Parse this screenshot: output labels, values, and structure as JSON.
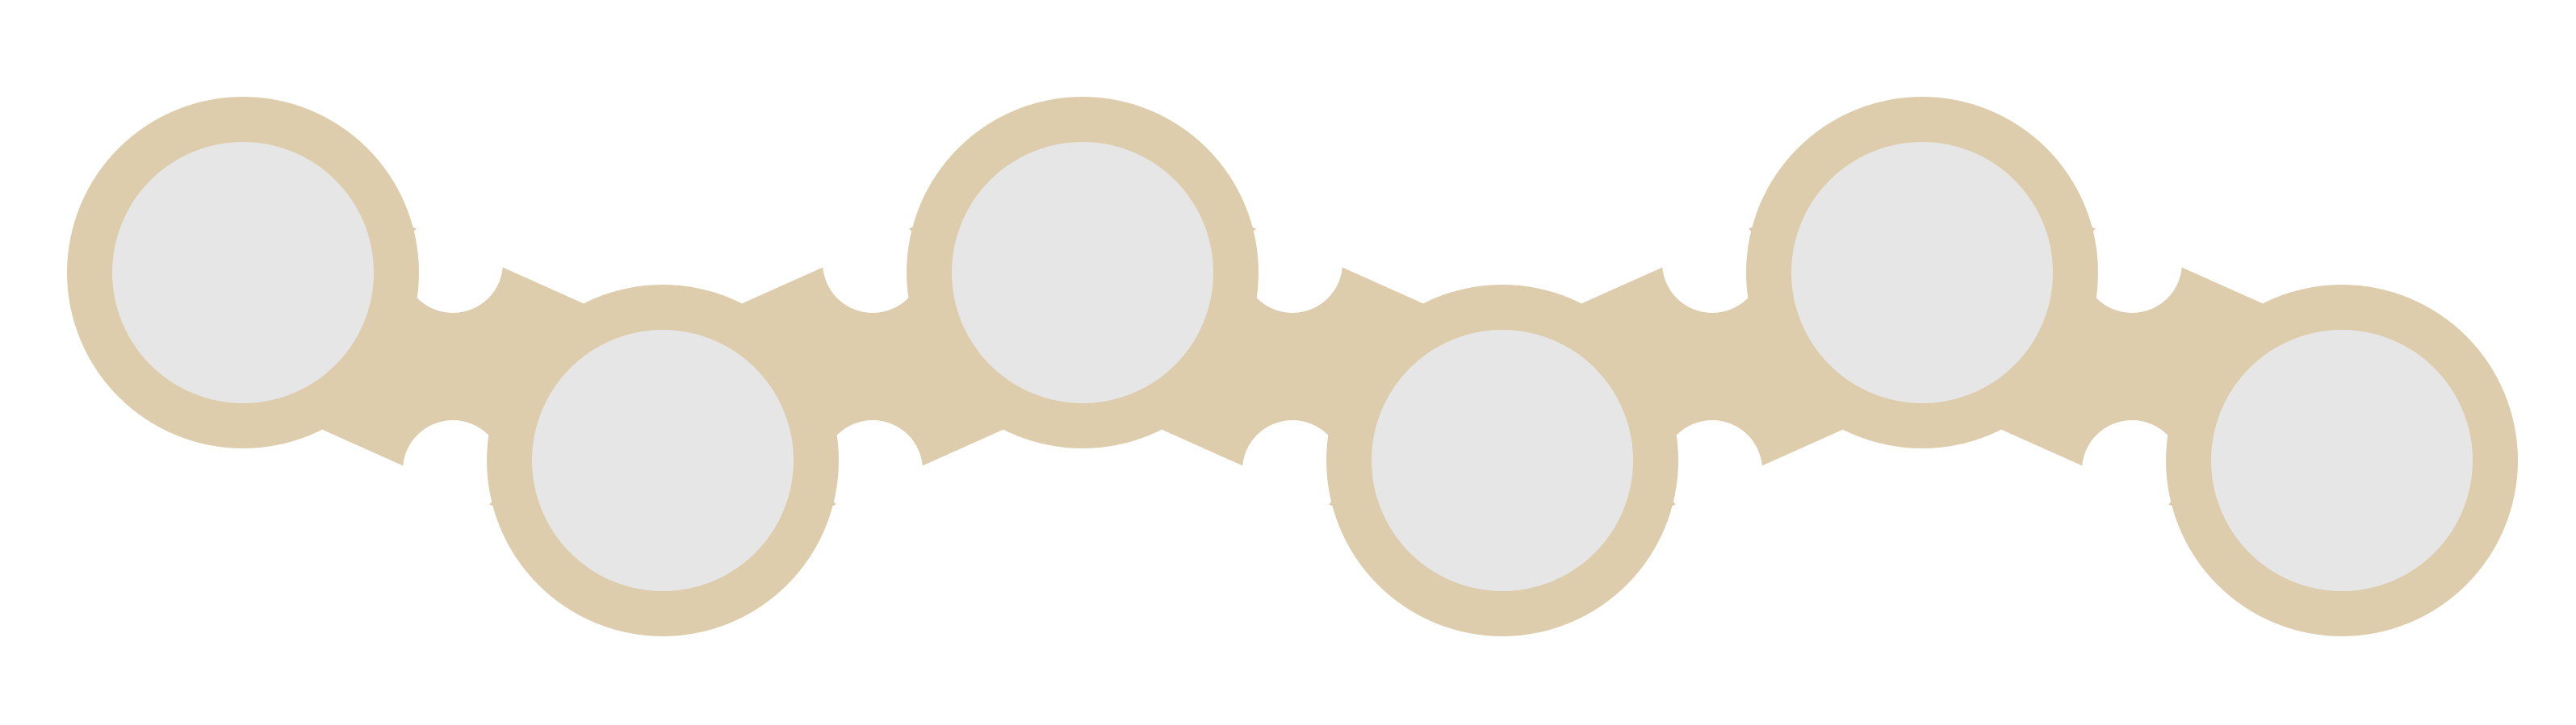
{
  "diagram": {
    "type": "wavy-circle-chain",
    "node_count": 6,
    "node_pattern": [
      "high",
      "low",
      "high",
      "low",
      "high",
      "low"
    ],
    "colors": {
      "background": "#ffffff",
      "ring": "#ddcdad",
      "node_fill": "#e6e6e6"
    }
  }
}
